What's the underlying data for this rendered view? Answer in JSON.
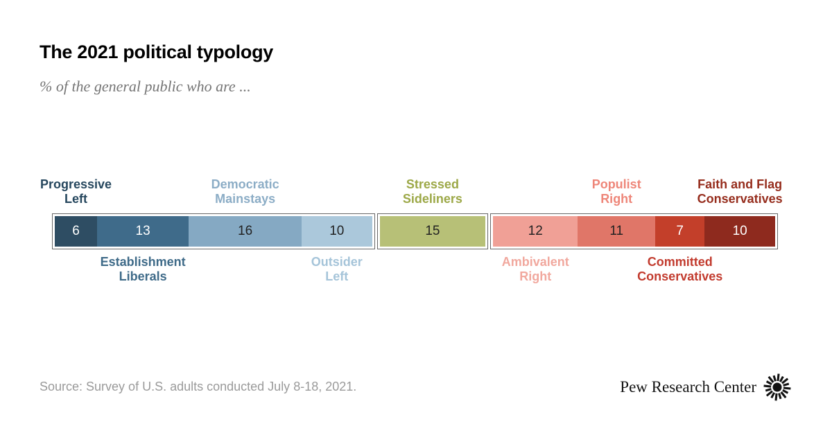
{
  "header": {
    "title": "The 2021 political typology",
    "subtitle": "% of the general public who are ..."
  },
  "footer": {
    "source": "Source: Survey of U.S. adults conducted July 8-18, 2021.",
    "brand": "Pew Research Center",
    "brand_icon": "pew-sunburst-icon",
    "brand_color": "#121212"
  },
  "chart_data": {
    "type": "bar",
    "subtype": "horizontal-stacked",
    "title": "The 2021 political typology",
    "unit": "% of the general public",
    "total": 100,
    "box_border_color": "#666666",
    "box_background": "#ffffff",
    "categories": [
      "Progressive Left",
      "Establishment Liberals",
      "Democratic Mainstays",
      "Outsider Left",
      "Stressed Sideliners",
      "Ambivalent Right",
      "Populist Right",
      "Committed Conservatives",
      "Faith and Flag Conservatives"
    ],
    "values": [
      6,
      13,
      16,
      10,
      15,
      12,
      11,
      7,
      10
    ],
    "segments": [
      {
        "label": "Progressive Left",
        "label_lines": [
          "Progressive",
          "Left"
        ],
        "value": 6,
        "color": "#2E4D63",
        "number_color": "#ffffff",
        "label_color": "#26475E",
        "label_position": "above",
        "group": 0
      },
      {
        "label": "Establishment Liberals",
        "label_lines": [
          "Establishment",
          "Liberals"
        ],
        "value": 13,
        "color": "#3F6B8A",
        "number_color": "#ffffff",
        "label_color": "#3E6A88",
        "label_position": "below",
        "group": 0
      },
      {
        "label": "Democratic Mainstays",
        "label_lines": [
          "Democratic",
          "Mainstays"
        ],
        "value": 16,
        "color": "#85A9C3",
        "number_color": "#222222",
        "label_color": "#8CADC6",
        "label_position": "above",
        "group": 0
      },
      {
        "label": "Outsider Left",
        "label_lines": [
          "Outsider",
          "Left"
        ],
        "value": 10,
        "color": "#ABC8DB",
        "number_color": "#222222",
        "label_color": "#A5C4D9",
        "label_position": "below",
        "group": 0
      },
      {
        "label": "Stressed Sideliners",
        "label_lines": [
          "Stressed",
          "Sideliners"
        ],
        "value": 15,
        "color": "#B7C077",
        "number_color": "#222222",
        "label_color": "#9CA847",
        "label_position": "above",
        "group": 1
      },
      {
        "label": "Ambivalent Right",
        "label_lines": [
          "Ambivalent",
          "Right"
        ],
        "value": 12,
        "color": "#F0A096",
        "number_color": "#222222",
        "label_color": "#F1A89E",
        "label_position": "below",
        "group": 2
      },
      {
        "label": "Populist Right",
        "label_lines": [
          "Populist",
          "Right"
        ],
        "value": 11,
        "color": "#E07668",
        "number_color": "#222222",
        "label_color": "#EE8679",
        "label_position": "above",
        "group": 2
      },
      {
        "label": "Committed Conservatives",
        "label_lines": [
          "Committed",
          "Conservatives"
        ],
        "value": 7,
        "color": "#C33F2A",
        "number_color": "#ffffff",
        "label_color": "#C23B2E",
        "label_position": "below",
        "group": 2
      },
      {
        "label": "Faith and Flag Conservatives",
        "label_lines": [
          "Faith and Flag",
          "Conservatives"
        ],
        "value": 10,
        "color": "#8E2A1E",
        "number_color": "#ffffff",
        "label_color": "#962D1D",
        "label_position": "above",
        "group": 2
      }
    ]
  }
}
